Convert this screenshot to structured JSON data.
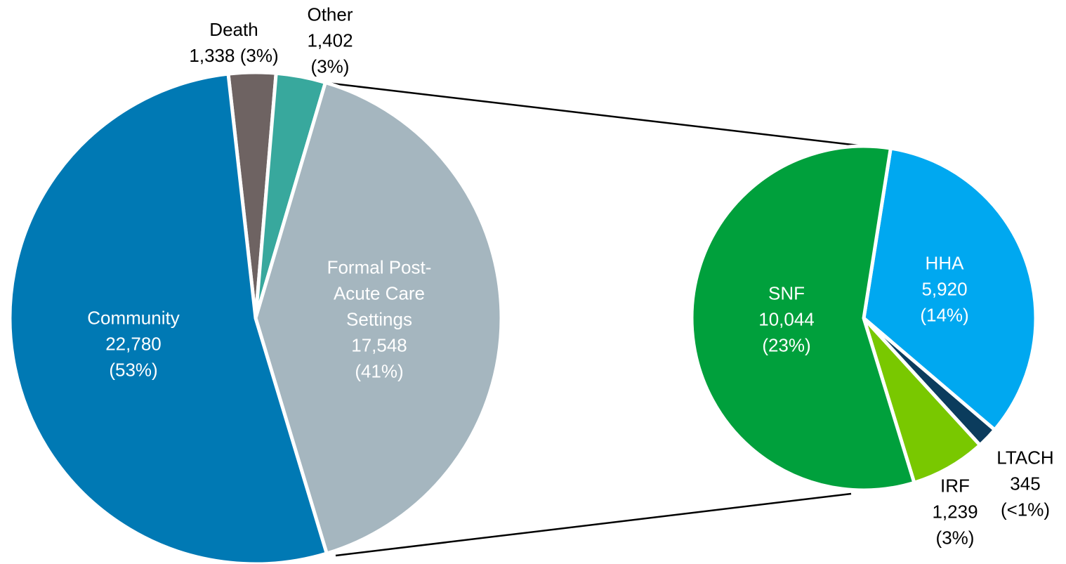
{
  "chart_data": [
    {
      "type": "pie",
      "categories": [
        "Death",
        "Other",
        "Formal Post-Acute Care Settings",
        "Community"
      ],
      "values": [
        1338,
        1402,
        17548,
        22780
      ],
      "value_labels": [
        "1,338",
        "1,402",
        "17,548",
        "22,780"
      ],
      "percent_labels": [
        "(3%)",
        "(3%)",
        "(41%)",
        "(53%)"
      ],
      "colors": [
        "#6e6362",
        "#38a89d",
        "#a5b6bf",
        "#0079b4"
      ]
    },
    {
      "type": "pie",
      "categories": [
        "HHA",
        "LTACH",
        "IRF",
        "SNF"
      ],
      "values": [
        5920,
        345,
        1239,
        10044
      ],
      "value_labels": [
        "5,920",
        "345",
        "1,239",
        "10,044"
      ],
      "percent_labels": [
        "(14%)",
        "(<1%)",
        "(3%)",
        "(23%)"
      ],
      "colors": [
        "#00a8f0",
        "#0b3c5d",
        "#79c800",
        "#00a03c"
      ]
    }
  ]
}
